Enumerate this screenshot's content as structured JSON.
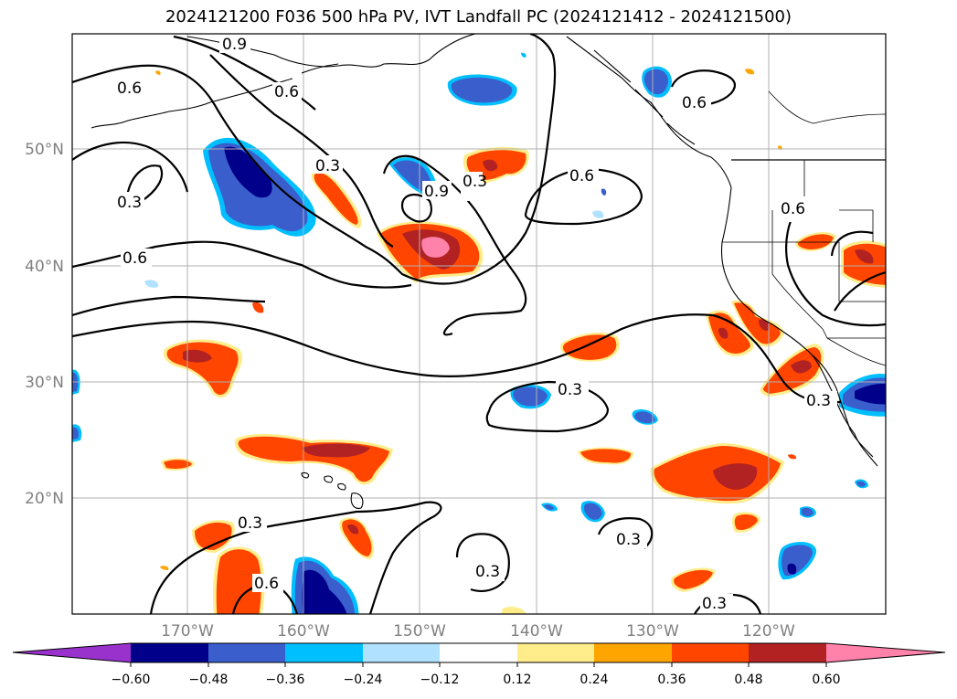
{
  "title": "2024121200 F036 500 hPa PV, IVT Landfall PC (2024121412 - 2024121500)",
  "lat_labels": [
    "50°N",
    "40°N",
    "30°N",
    "20°N"
  ],
  "lon_labels": [
    "170°W",
    "160°W",
    "150°W",
    "140°W",
    "130°W",
    "120°W"
  ],
  "colorbar": {
    "ticks": [
      "−0.60",
      "−0.48",
      "−0.36",
      "−0.24",
      "−0.12",
      "0.12",
      "0.24",
      "0.36",
      "0.48",
      "0.60"
    ],
    "colors": {
      "under": "#9932cc",
      "bins": [
        "#00008b",
        "#3a5fcd",
        "#00bfff",
        "#b0e2ff",
        "#ffffff",
        "#ffec8b",
        "#ffa500",
        "#ff4500",
        "#b22222"
      ],
      "over": "#ff82ab"
    }
  },
  "contour_labels": [
    "0.9",
    "0.6",
    "0.6",
    "0.3",
    "0.3",
    "0.9",
    "0.3",
    "0.6",
    "0.6",
    "0.6",
    "0.6",
    "0.3",
    "0.3",
    "0.3",
    "0.3",
    "0.6",
    "0.3",
    "0.3"
  ]
}
